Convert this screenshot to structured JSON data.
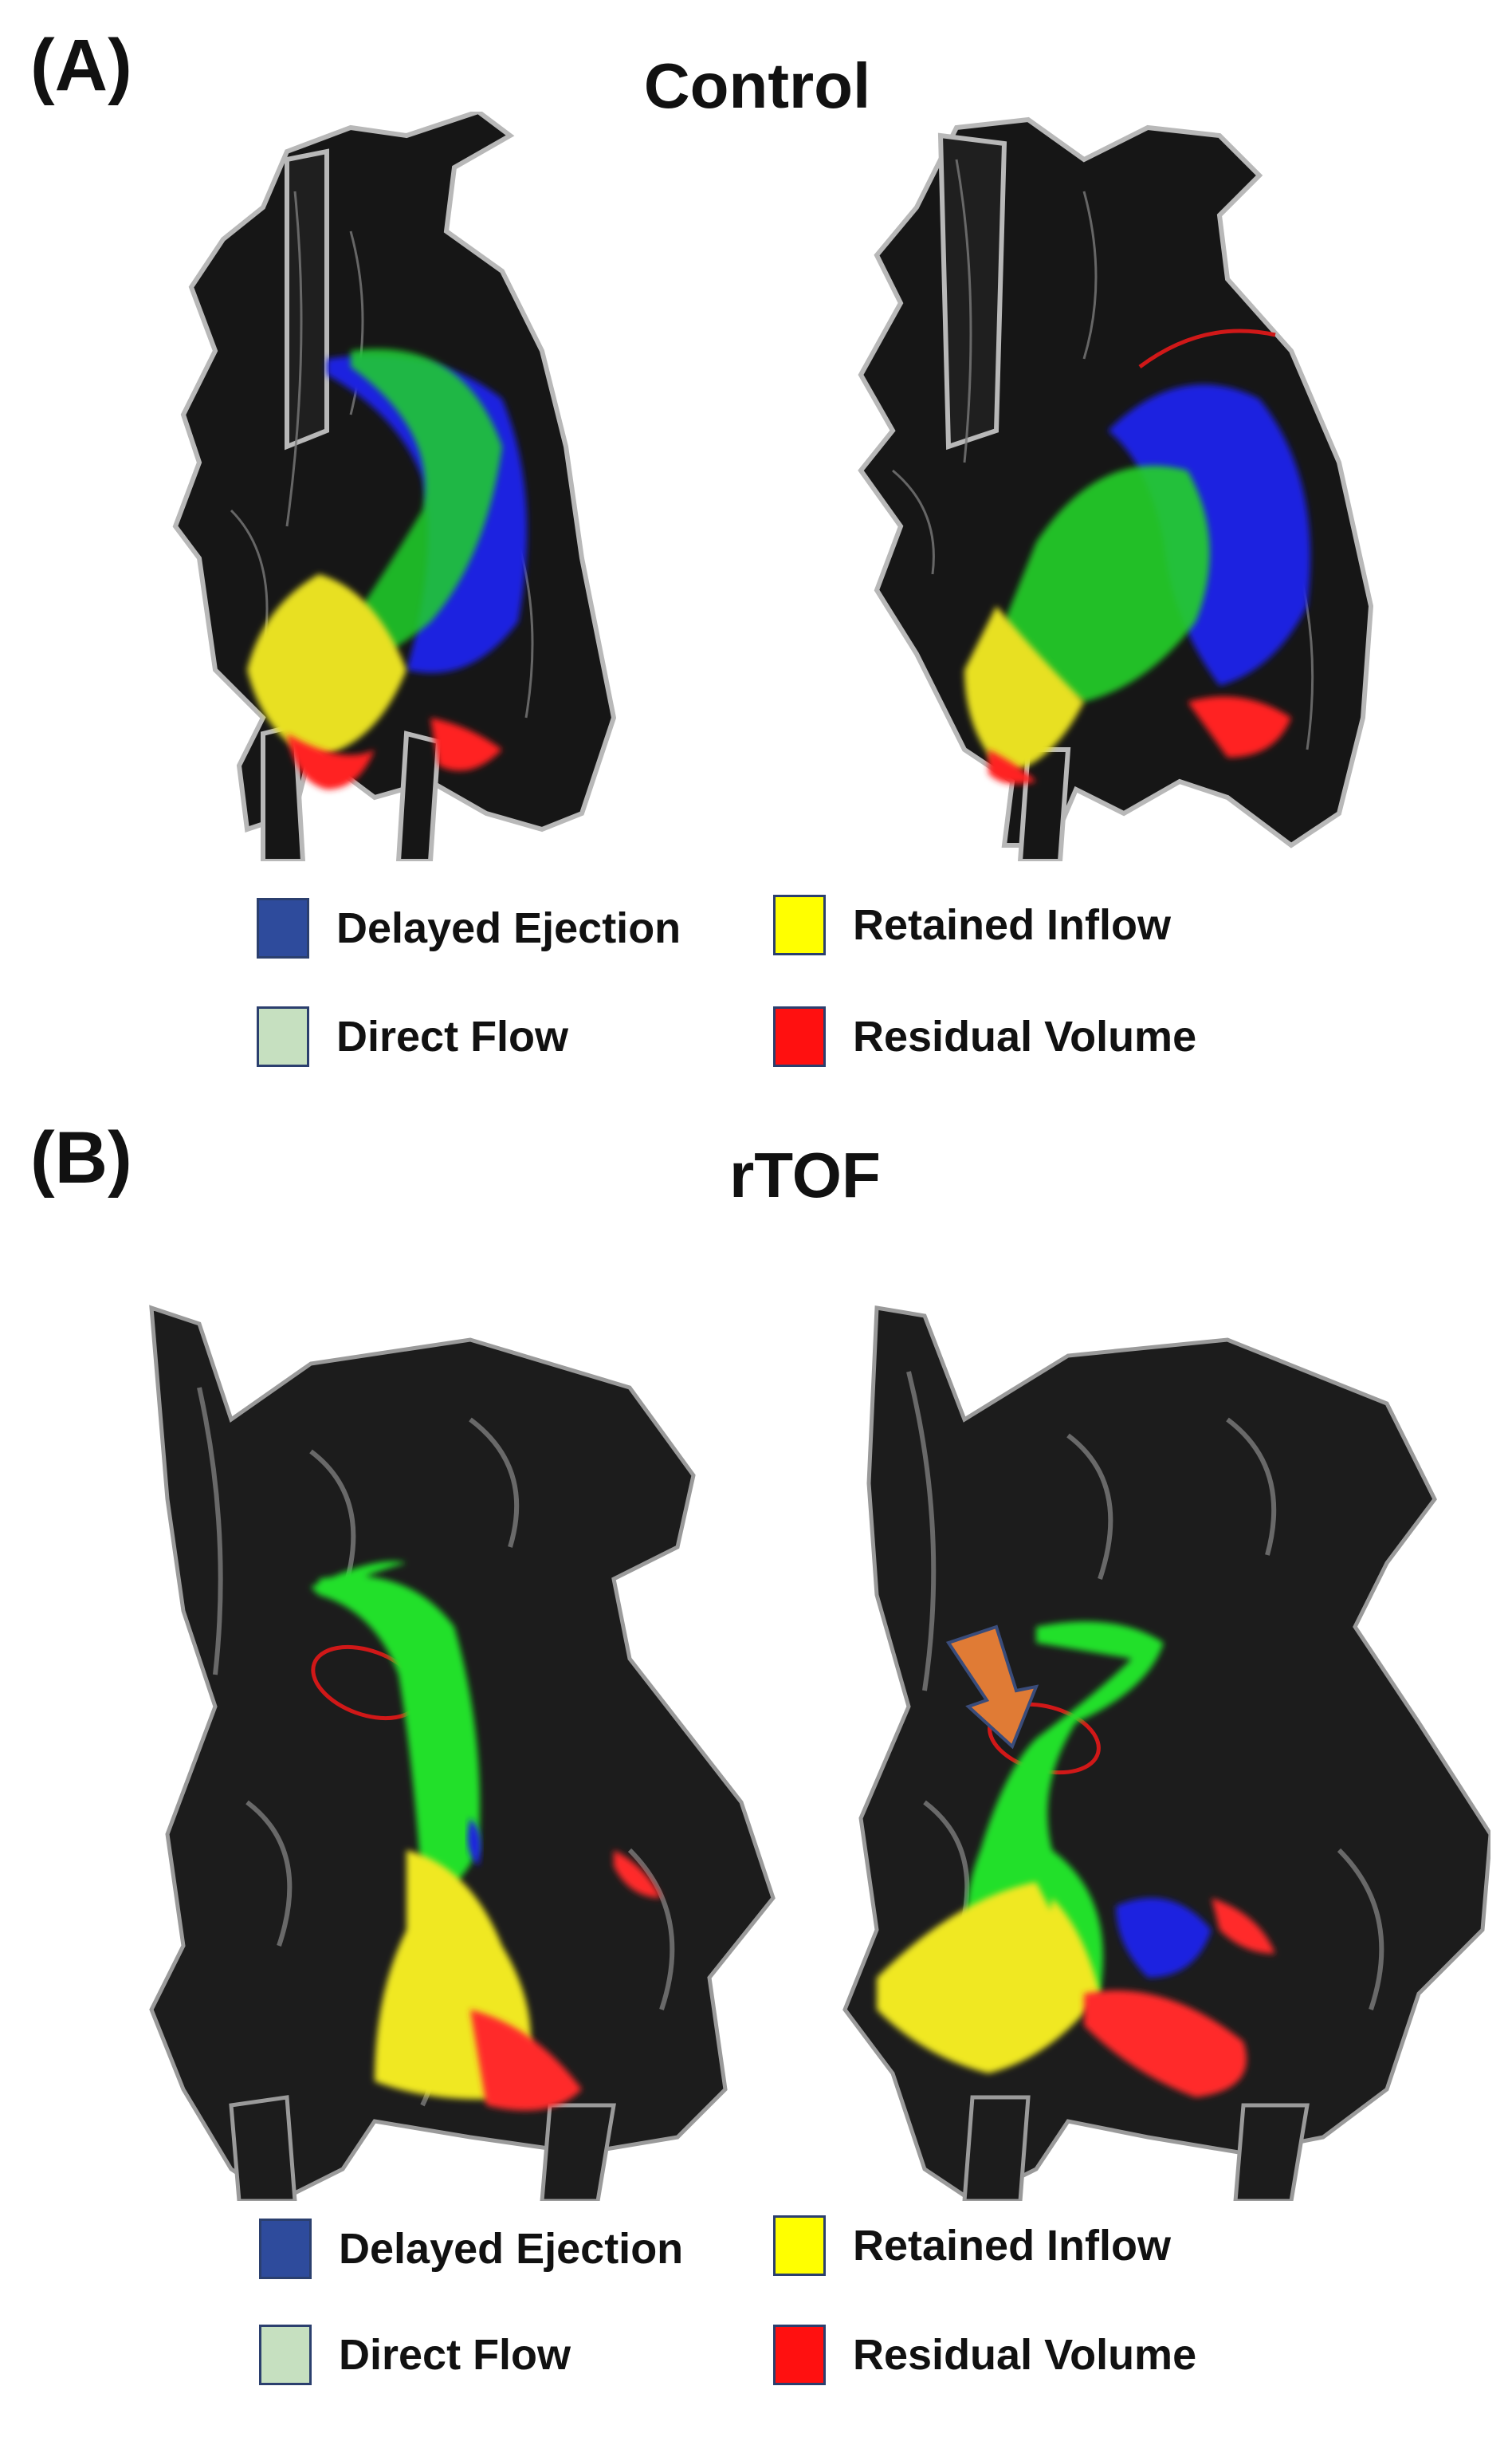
{
  "panels": [
    {
      "letter": "(A)",
      "title": "Control",
      "legend": [
        {
          "label": "Delayed Ejection",
          "color": "#2e4b9c",
          "border": "#2b3f6e"
        },
        {
          "label": "Retained Inflow",
          "color": "#ffff00",
          "border": "#2b3f6e"
        },
        {
          "label": "Direct Flow",
          "color": "#c6e0c0",
          "border": "#2b3f6e"
        },
        {
          "label": "Residual Volume",
          "color": "#ff1010",
          "border": "#2b3f6e"
        }
      ]
    },
    {
      "letter": "(B)",
      "title": "rTOF",
      "legend": [
        {
          "label": "Delayed Ejection",
          "color": "#2e4b9c",
          "border": "#2b3f6e"
        },
        {
          "label": "Retained Inflow",
          "color": "#ffff00",
          "border": "#2b3f6e"
        },
        {
          "label": "Direct Flow",
          "color": "#c6e0c0",
          "border": "#2b3f6e"
        },
        {
          "label": "Residual Volume",
          "color": "#ff1010",
          "border": "#2b3f6e"
        }
      ]
    }
  ],
  "colors": {
    "anatomy": "#1a1a1a",
    "anatomy_highlight": "#8a8a8a",
    "ring": "#d01818",
    "arrow": "#e07b35"
  }
}
